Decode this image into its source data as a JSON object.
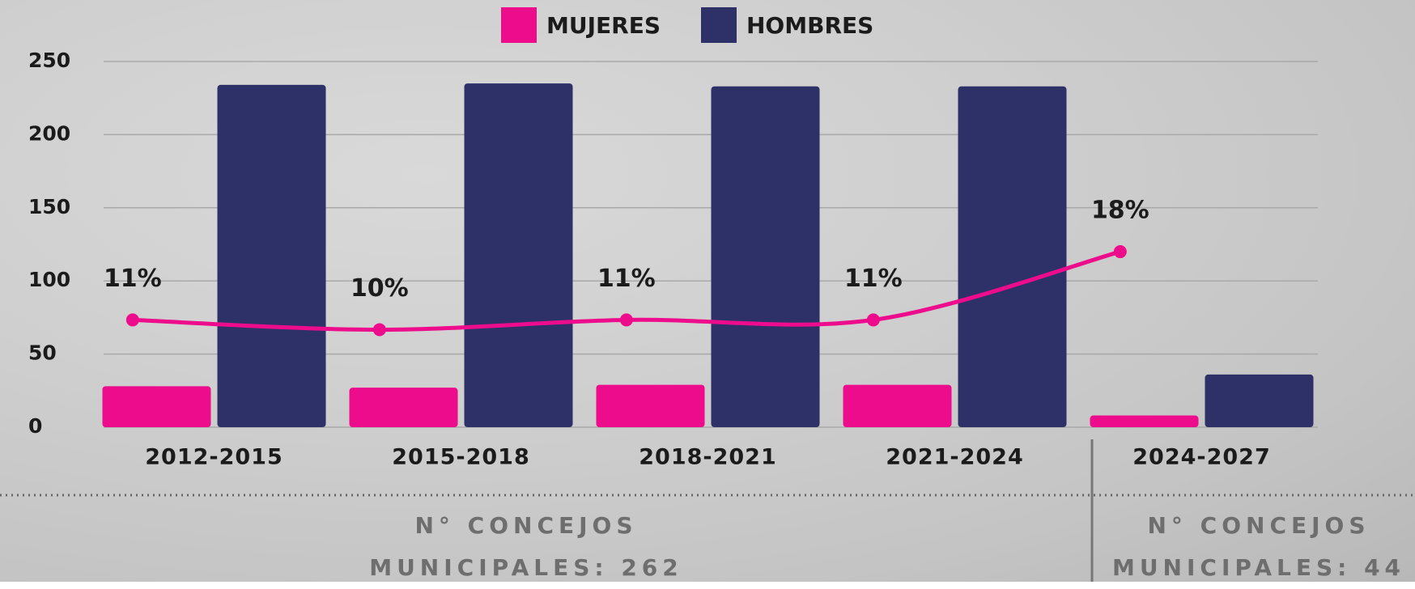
{
  "chart_data": {
    "type": "bar",
    "categories": [
      "2012-2015",
      "2015-2018",
      "2018-2021",
      "2021-2024",
      "2024-2027"
    ],
    "series": [
      {
        "name": "MUJERES",
        "color": "#ec0c8c",
        "values": [
          28,
          27,
          29,
          29,
          8
        ]
      },
      {
        "name": "HOMBRES",
        "color": "#2e3168",
        "values": [
          234,
          235,
          233,
          233,
          36
        ]
      },
      {
        "type": "line",
        "axis": "y2",
        "color": "#ec0c8c",
        "values": [
          11,
          10,
          11,
          11,
          18
        ],
        "value_labels": [
          "11%",
          "10%",
          "11%",
          "11%",
          "18%"
        ]
      }
    ],
    "ylim": [
      0,
      250
    ],
    "yticks": [
      0,
      50,
      100,
      150,
      200,
      250
    ],
    "y2lim": [
      0,
      37.5
    ],
    "grid": true,
    "legend": "top",
    "annotations": [
      "N° CONCEJOS MUNICIPALES: 262",
      "N° CONCEJOS MUNICIPALES: 44"
    ]
  }
}
